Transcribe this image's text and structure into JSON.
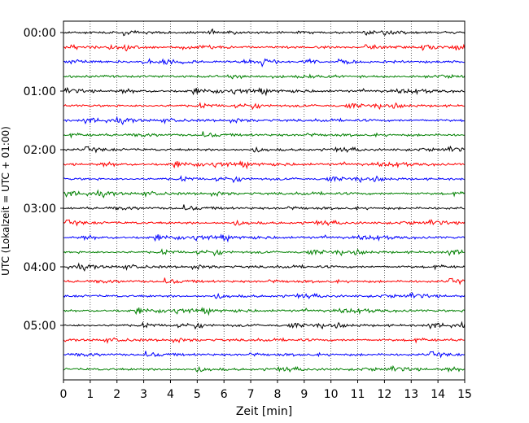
{
  "chart_data": {
    "type": "line",
    "title": "",
    "xlabel": "Zeit  [min]",
    "ylabel": "UTC (Lokalzeit = UTC + 01:00)",
    "xlim": [
      0,
      15
    ],
    "x_ticks": [
      0,
      1,
      2,
      3,
      4,
      5,
      6,
      7,
      8,
      9,
      10,
      11,
      12,
      13,
      14,
      15
    ],
    "y_tick_labels": [
      "00:00",
      "01:00",
      "02:00",
      "03:00",
      "04:00",
      "05:00"
    ],
    "rows_per_hour": 4,
    "row_minutes": 15,
    "row_start_times": [
      "00:00",
      "00:15",
      "00:30",
      "00:45",
      "01:00",
      "01:15",
      "01:30",
      "01:45",
      "02:00",
      "02:15",
      "02:30",
      "02:45",
      "03:00",
      "03:15",
      "03:30",
      "03:45",
      "04:00",
      "04:15",
      "04:30",
      "04:45",
      "05:00",
      "05:15",
      "05:30",
      "05:45"
    ],
    "row_colors": [
      "#000000",
      "#ff0000",
      "#0000ff",
      "#008000"
    ],
    "grid": "vertical dotted lines at each minute",
    "legend": "none"
  }
}
